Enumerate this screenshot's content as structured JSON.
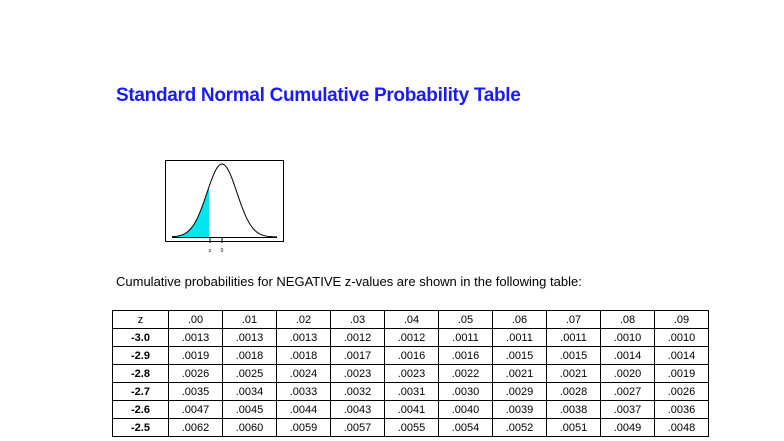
{
  "header": {
    "title": "Standard Normal Cumulative Probability Table"
  },
  "figure": {
    "z_label": "z",
    "zero_label": "0"
  },
  "caption": "Cumulative probabilities for NEGATIVE z-values are shown in the following table:",
  "table": {
    "header": [
      "z",
      ".00",
      ".01",
      ".02",
      ".03",
      ".04",
      ".05",
      ".06",
      ".07",
      ".08",
      ".09"
    ],
    "rows": [
      [
        "-3.0",
        ".0013",
        ".0013",
        ".0013",
        ".0012",
        ".0012",
        ".0011",
        ".0011",
        ".0011",
        ".0010",
        ".0010"
      ],
      [
        "-2.9",
        ".0019",
        ".0018",
        ".0018",
        ".0017",
        ".0016",
        ".0016",
        ".0015",
        ".0015",
        ".0014",
        ".0014"
      ],
      [
        "-2.8",
        ".0026",
        ".0025",
        ".0024",
        ".0023",
        ".0023",
        ".0022",
        ".0021",
        ".0021",
        ".0020",
        ".0019"
      ],
      [
        "-2.7",
        ".0035",
        ".0034",
        ".0033",
        ".0032",
        ".0031",
        ".0030",
        ".0029",
        ".0028",
        ".0027",
        ".0026"
      ],
      [
        "-2.6",
        ".0047",
        ".0045",
        ".0044",
        ".0043",
        ".0041",
        ".0040",
        ".0039",
        ".0038",
        ".0037",
        ".0036"
      ],
      [
        "-2.5",
        ".0062",
        ".0060",
        ".0059",
        ".0057",
        ".0055",
        ".0054",
        ".0052",
        ".0051",
        ".0049",
        ".0048"
      ]
    ]
  }
}
